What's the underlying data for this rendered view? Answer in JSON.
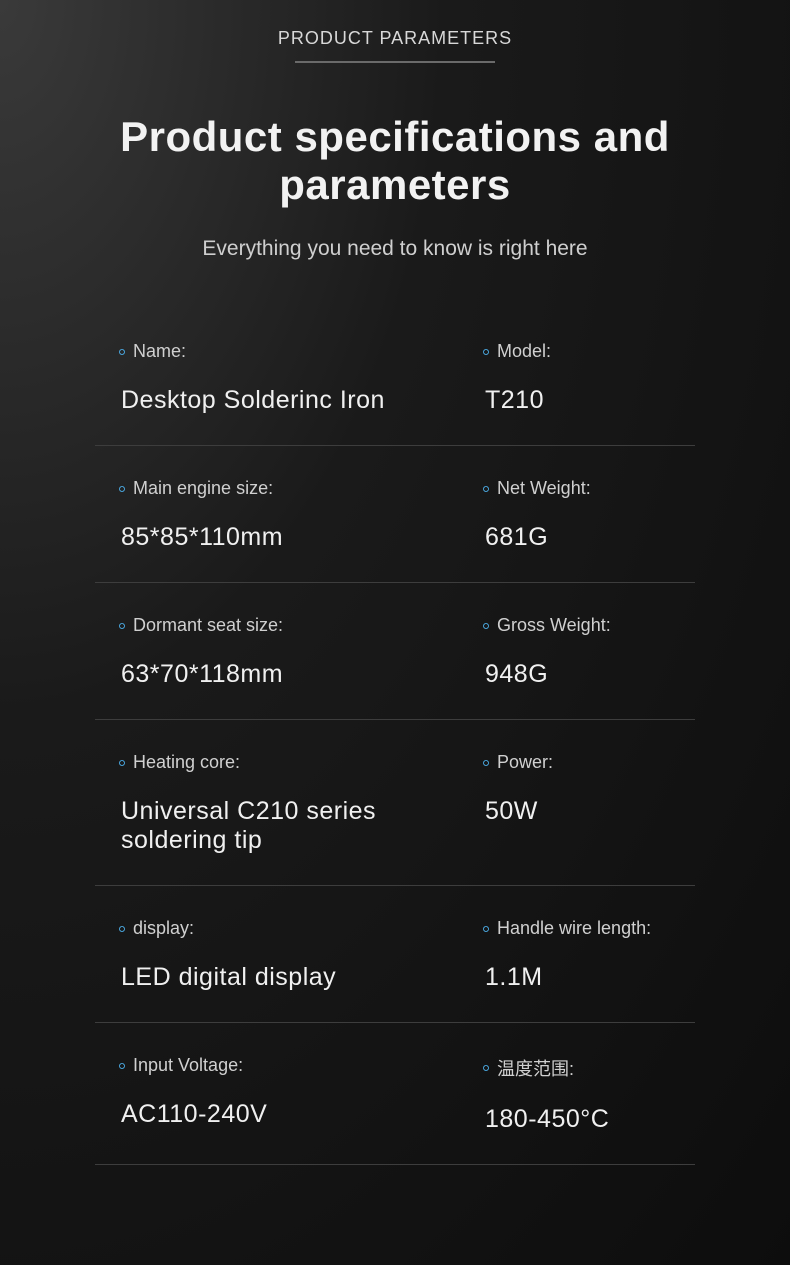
{
  "header": {
    "eyebrow": "PRODUCT PARAMETERS",
    "title": "Product specifications and parameters",
    "subtitle": "Everything you need to know is right here"
  },
  "specs": {
    "rows": [
      {
        "left": {
          "label": "Name:",
          "value": "Desktop Solderinc Iron"
        },
        "right": {
          "label": "Model:",
          "value": "T210"
        }
      },
      {
        "left": {
          "label": "Main engine size:",
          "value": "85*85*110mm"
        },
        "right": {
          "label": "Net Weight:",
          "value": "681G"
        }
      },
      {
        "left": {
          "label": "Dormant seat size:",
          "value": "63*70*118mm"
        },
        "right": {
          "label": "Gross Weight:",
          "value": "948G"
        }
      },
      {
        "left": {
          "label": "Heating core:",
          "value": "Universal C210 series soldering tip"
        },
        "right": {
          "label": "Power:",
          "value": "50W"
        }
      },
      {
        "left": {
          "label": "display:",
          "value": "LED digital display"
        },
        "right": {
          "label": "Handle wire length:",
          "value": "1.1M"
        }
      },
      {
        "left": {
          "label": "Input Voltage:",
          "value": "AC110-240V"
        },
        "right": {
          "label": "温度范围:",
          "value": "180-450°C"
        }
      }
    ]
  },
  "style": {
    "background_gradient_from": "#3a3a3a",
    "background_gradient_to": "#0d0d0d",
    "text_primary": "#f0f0f0",
    "text_secondary": "#d0d0d0",
    "divider_color": "#3d3d3d",
    "bullet_border": "#4aa8e0",
    "eyebrow_fontsize": 18,
    "title_fontsize": 42,
    "subtitle_fontsize": 21,
    "label_fontsize": 18,
    "value_fontsize": 25
  }
}
